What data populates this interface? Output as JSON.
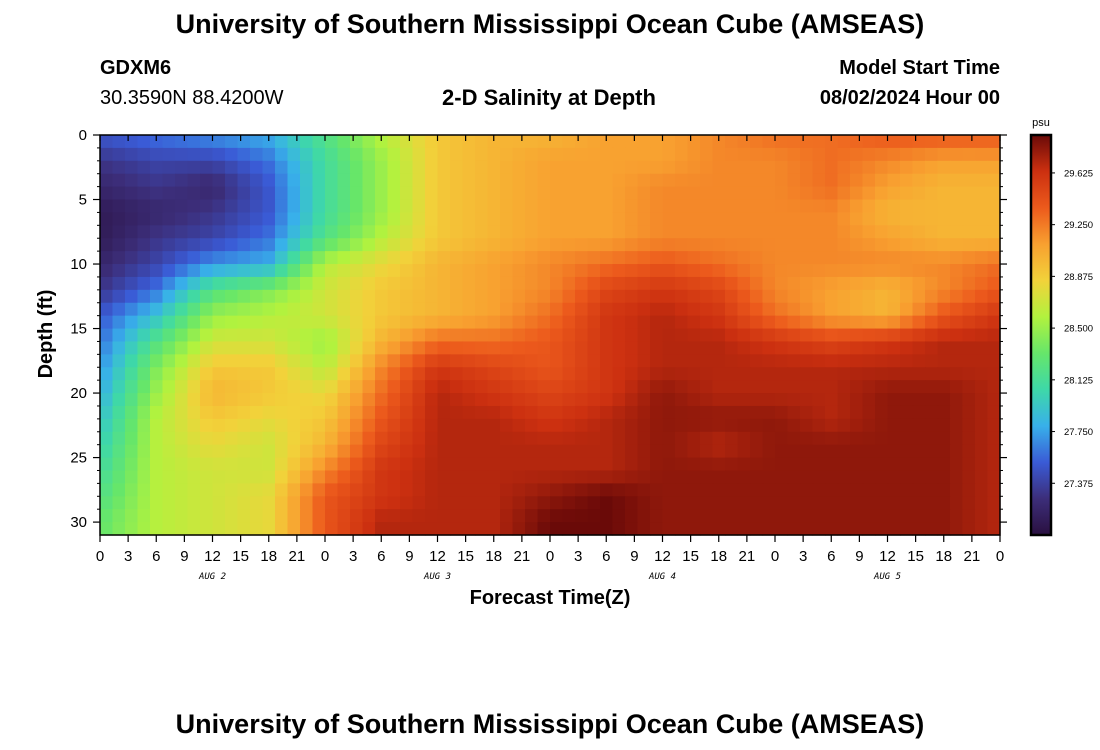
{
  "page": {
    "title_top": "University of Southern Mississippi Ocean Cube (AMSEAS)",
    "title_bottom": "University of Southern Mississippi Ocean Cube (AMSEAS)",
    "station_id": "GDXM6",
    "coordinates": "30.3590N  88.4200W",
    "plot_title": "2-D Salinity at Depth",
    "model_start_label": "Model Start Time",
    "model_start_value": "08/02/2024 Hour 00"
  },
  "chart_data": {
    "type": "heatmap",
    "title": "2-D Salinity at Depth",
    "xlabel": "Forecast Time(Z)",
    "ylabel": "Depth (ft)",
    "x_hours_range": [
      0,
      96
    ],
    "x_tick_labels": [
      "0",
      "3",
      "6",
      "9",
      "12",
      "15",
      "18",
      "21",
      "0",
      "3",
      "6",
      "9",
      "12",
      "15",
      "18",
      "21",
      "0",
      "3",
      "6",
      "9",
      "12",
      "15",
      "18",
      "21",
      "0",
      "3",
      "6",
      "9",
      "12",
      "15",
      "18",
      "21",
      "0"
    ],
    "date_labels": [
      "AUG 2",
      "AUG 3",
      "AUG 4",
      "AUG 5"
    ],
    "y_ticks": [
      0,
      5,
      10,
      15,
      20,
      25,
      30
    ],
    "y_range": [
      0,
      31
    ],
    "y_inverted": true,
    "colorbar": {
      "unit": "psu",
      "range": [
        27.0,
        29.9
      ],
      "tick_labels": [
        "29.625",
        "29.250",
        "28.875",
        "28.500",
        "28.125",
        "27.750",
        "27.375"
      ],
      "tick_values": [
        29.625,
        29.25,
        28.875,
        28.5,
        28.125,
        27.75,
        27.375
      ],
      "colors": [
        "#2a1040",
        "#3c2e7a",
        "#3a5bd6",
        "#38b0ea",
        "#3ed8a8",
        "#66e66a",
        "#b2f23e",
        "#f2d23a",
        "#f8a030",
        "#ec5a1c",
        "#cc3010",
        "#6a0a08"
      ]
    },
    "depth_levels_ft": [
      0,
      2,
      4,
      6,
      8,
      10,
      12,
      14,
      16,
      18,
      20,
      22,
      24,
      26,
      28,
      30
    ],
    "time_steps_hours": [
      0,
      6,
      12,
      18,
      24,
      30,
      36,
      42,
      48,
      54,
      60,
      66,
      72,
      78,
      84,
      90,
      96
    ],
    "salinity_grid_psu": [
      [
        27.5,
        27.6,
        27.7,
        27.8,
        28.2,
        28.6,
        28.9,
        29.0,
        29.0,
        29.1,
        29.1,
        29.2,
        29.3,
        29.3,
        29.4,
        29.4,
        29.4
      ],
      [
        27.3,
        27.4,
        27.4,
        27.6,
        28.1,
        28.5,
        28.9,
        29.0,
        29.1,
        29.1,
        29.1,
        29.2,
        29.2,
        29.3,
        29.2,
        29.1,
        29.1
      ],
      [
        27.2,
        27.3,
        27.2,
        27.5,
        28.1,
        28.5,
        28.9,
        29.0,
        29.1,
        29.1,
        29.2,
        29.2,
        29.2,
        29.3,
        29.1,
        29.0,
        29.0
      ],
      [
        27.1,
        27.2,
        27.3,
        27.5,
        28.1,
        28.5,
        28.9,
        29.0,
        29.1,
        29.1,
        29.2,
        29.2,
        29.2,
        29.2,
        29.0,
        29.0,
        29.0
      ],
      [
        27.1,
        27.3,
        27.4,
        27.6,
        28.2,
        28.6,
        28.9,
        29.0,
        29.1,
        29.1,
        29.2,
        29.2,
        29.2,
        29.2,
        29.1,
        29.0,
        29.0
      ],
      [
        27.2,
        27.4,
        27.7,
        27.8,
        28.6,
        28.8,
        29.0,
        29.1,
        29.2,
        29.3,
        29.4,
        29.3,
        29.2,
        29.2,
        29.2,
        29.2,
        29.3
      ],
      [
        27.3,
        27.6,
        28.2,
        28.4,
        28.7,
        28.9,
        29.0,
        29.1,
        29.2,
        29.5,
        29.6,
        29.5,
        29.2,
        29.1,
        29.0,
        29.2,
        29.4
      ],
      [
        27.5,
        27.9,
        28.5,
        28.6,
        28.7,
        28.9,
        29.0,
        29.1,
        29.3,
        29.6,
        29.7,
        29.6,
        29.3,
        29.1,
        29.0,
        29.4,
        29.6
      ],
      [
        27.6,
        28.2,
        28.7,
        28.7,
        28.5,
        29.0,
        29.3,
        29.3,
        29.4,
        29.6,
        29.7,
        29.7,
        29.6,
        29.5,
        29.6,
        29.7,
        29.7
      ],
      [
        27.7,
        28.4,
        28.9,
        28.9,
        28.6,
        29.2,
        29.6,
        29.5,
        29.4,
        29.6,
        29.7,
        29.7,
        29.7,
        29.7,
        29.7,
        29.7,
        29.7
      ],
      [
        27.8,
        28.5,
        29.0,
        28.9,
        28.8,
        29.3,
        29.7,
        29.6,
        29.5,
        29.6,
        29.8,
        29.7,
        29.7,
        29.7,
        29.8,
        29.8,
        29.7
      ],
      [
        27.9,
        28.6,
        28.9,
        28.8,
        28.9,
        29.4,
        29.7,
        29.7,
        29.6,
        29.7,
        29.8,
        29.8,
        29.8,
        29.7,
        29.8,
        29.8,
        29.7
      ],
      [
        28.0,
        28.6,
        28.8,
        28.7,
        29.0,
        29.5,
        29.7,
        29.7,
        29.7,
        29.7,
        29.8,
        29.7,
        29.8,
        29.8,
        29.8,
        29.8,
        29.7
      ],
      [
        28.1,
        28.6,
        28.7,
        28.7,
        29.2,
        29.6,
        29.7,
        29.7,
        29.7,
        29.7,
        29.8,
        29.8,
        29.8,
        29.8,
        29.8,
        29.8,
        29.7
      ],
      [
        28.2,
        28.6,
        28.7,
        28.8,
        29.4,
        29.6,
        29.7,
        29.7,
        29.8,
        29.9,
        29.8,
        29.8,
        29.8,
        29.8,
        29.8,
        29.8,
        29.7
      ],
      [
        28.3,
        28.6,
        28.7,
        28.8,
        29.4,
        29.7,
        29.7,
        29.7,
        29.9,
        29.9,
        29.8,
        29.8,
        29.8,
        29.8,
        29.8,
        29.8,
        29.7
      ]
    ]
  }
}
